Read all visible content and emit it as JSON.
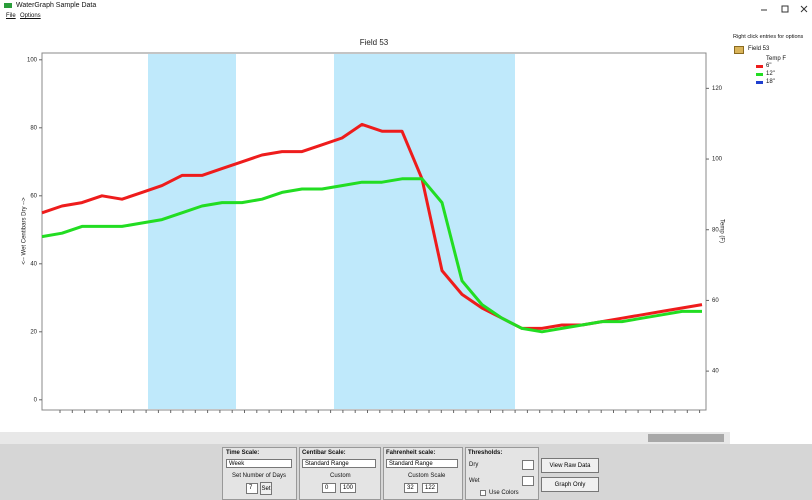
{
  "window": {
    "title": "WaterGraph Sample Data",
    "menu": [
      "File",
      "Options"
    ]
  },
  "sidebar": {
    "hint": "Right click entries for options",
    "field": "Field 53",
    "group": "Temp F"
  },
  "chart_data": {
    "type": "line",
    "title": "Field 53",
    "y_label": "<-- Wet   Centibars   Dry -->",
    "y2_label": "Temp (F)",
    "ylim": [
      -3,
      102
    ],
    "yticks": [
      0,
      20,
      40,
      60,
      80,
      100
    ],
    "y2lim": [
      29,
      130
    ],
    "y2ticks": [
      40,
      60,
      80,
      100,
      120
    ],
    "series": [
      {
        "name": "6\"",
        "color": "#ee1c1c",
        "values": [
          55,
          57,
          58,
          60,
          59,
          61,
          63,
          66,
          66,
          68,
          70,
          72,
          73,
          73,
          75,
          77,
          81,
          79,
          79,
          65,
          38,
          31,
          27,
          24,
          21,
          21,
          22,
          22,
          23,
          24,
          25,
          26,
          27,
          28
        ]
      },
      {
        "name": "12\"",
        "color": "#22dd22",
        "values": [
          48,
          49,
          51,
          51,
          51,
          52,
          53,
          55,
          57,
          58,
          58,
          59,
          61,
          62,
          62,
          63,
          64,
          64,
          65,
          65,
          58,
          35,
          28,
          24,
          21,
          20,
          21,
          22,
          23,
          23,
          24,
          25,
          26,
          26
        ]
      },
      {
        "name": "18\"",
        "color": "#1f3fcf",
        "values": [
          null,
          null,
          null,
          null,
          null,
          null,
          null,
          null,
          null,
          null,
          null,
          null,
          null,
          null,
          null,
          null,
          null,
          null,
          null,
          null,
          null,
          null,
          null,
          null,
          null,
          null,
          null,
          null,
          null,
          null,
          null,
          null,
          null,
          null
        ]
      }
    ]
  },
  "controls": {
    "time": {
      "title": "Time Scale:",
      "select": "Week",
      "days_label": "Set Number of Days",
      "days": "7",
      "button": "Set"
    },
    "centibar": {
      "title": "Centibar Scale:",
      "select": "Standard Range",
      "custom": "Custom",
      "min": "0",
      "max": "100"
    },
    "fahrenheit": {
      "title": "Fahrenheit scale:",
      "select": "Standard Range",
      "custom": "Custom Scale",
      "min": "32",
      "max": "122"
    },
    "thresholds": {
      "title": "Thresholds:",
      "dry": "Dry",
      "wet": "Wet",
      "colors": "Use Colors"
    },
    "buttons": [
      "View Raw Data",
      "Graph Only"
    ]
  }
}
